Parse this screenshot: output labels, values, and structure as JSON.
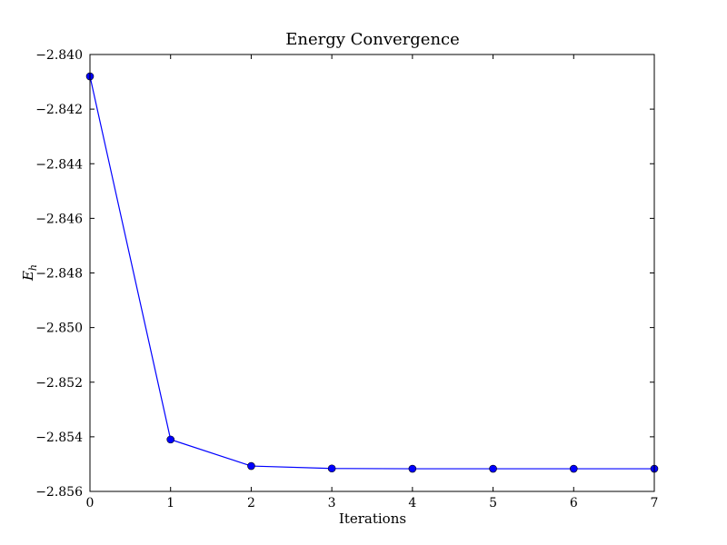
{
  "chart_data": {
    "type": "line",
    "title": "Energy Convergence",
    "xlabel": "Iterations",
    "ylabel": "E",
    "ylabel_subscript": "h",
    "xlim": [
      0,
      7
    ],
    "ylim": [
      -2.856,
      -2.84
    ],
    "x_ticks": [
      0,
      1,
      2,
      3,
      4,
      5,
      6,
      7
    ],
    "x_tick_labels": [
      "0",
      "1",
      "2",
      "3",
      "4",
      "5",
      "6",
      "7"
    ],
    "y_ticks": [
      -2.84,
      -2.842,
      -2.844,
      -2.846,
      -2.848,
      -2.85,
      -2.852,
      -2.854,
      -2.856
    ],
    "y_tick_labels": [
      "−2.840",
      "−2.842",
      "−2.844",
      "−2.846",
      "−2.848",
      "−2.850",
      "−2.852",
      "−2.854",
      "−2.856"
    ],
    "grid": false,
    "series": [
      {
        "x": [
          0,
          1,
          2,
          3,
          4,
          5,
          6,
          7
        ],
        "values": [
          -2.8408,
          -2.8541,
          -2.85507,
          -2.85516,
          -2.85517,
          -2.85517,
          -2.85517,
          -2.85517
        ],
        "color": "#0000ff",
        "marker": "circle"
      }
    ]
  }
}
